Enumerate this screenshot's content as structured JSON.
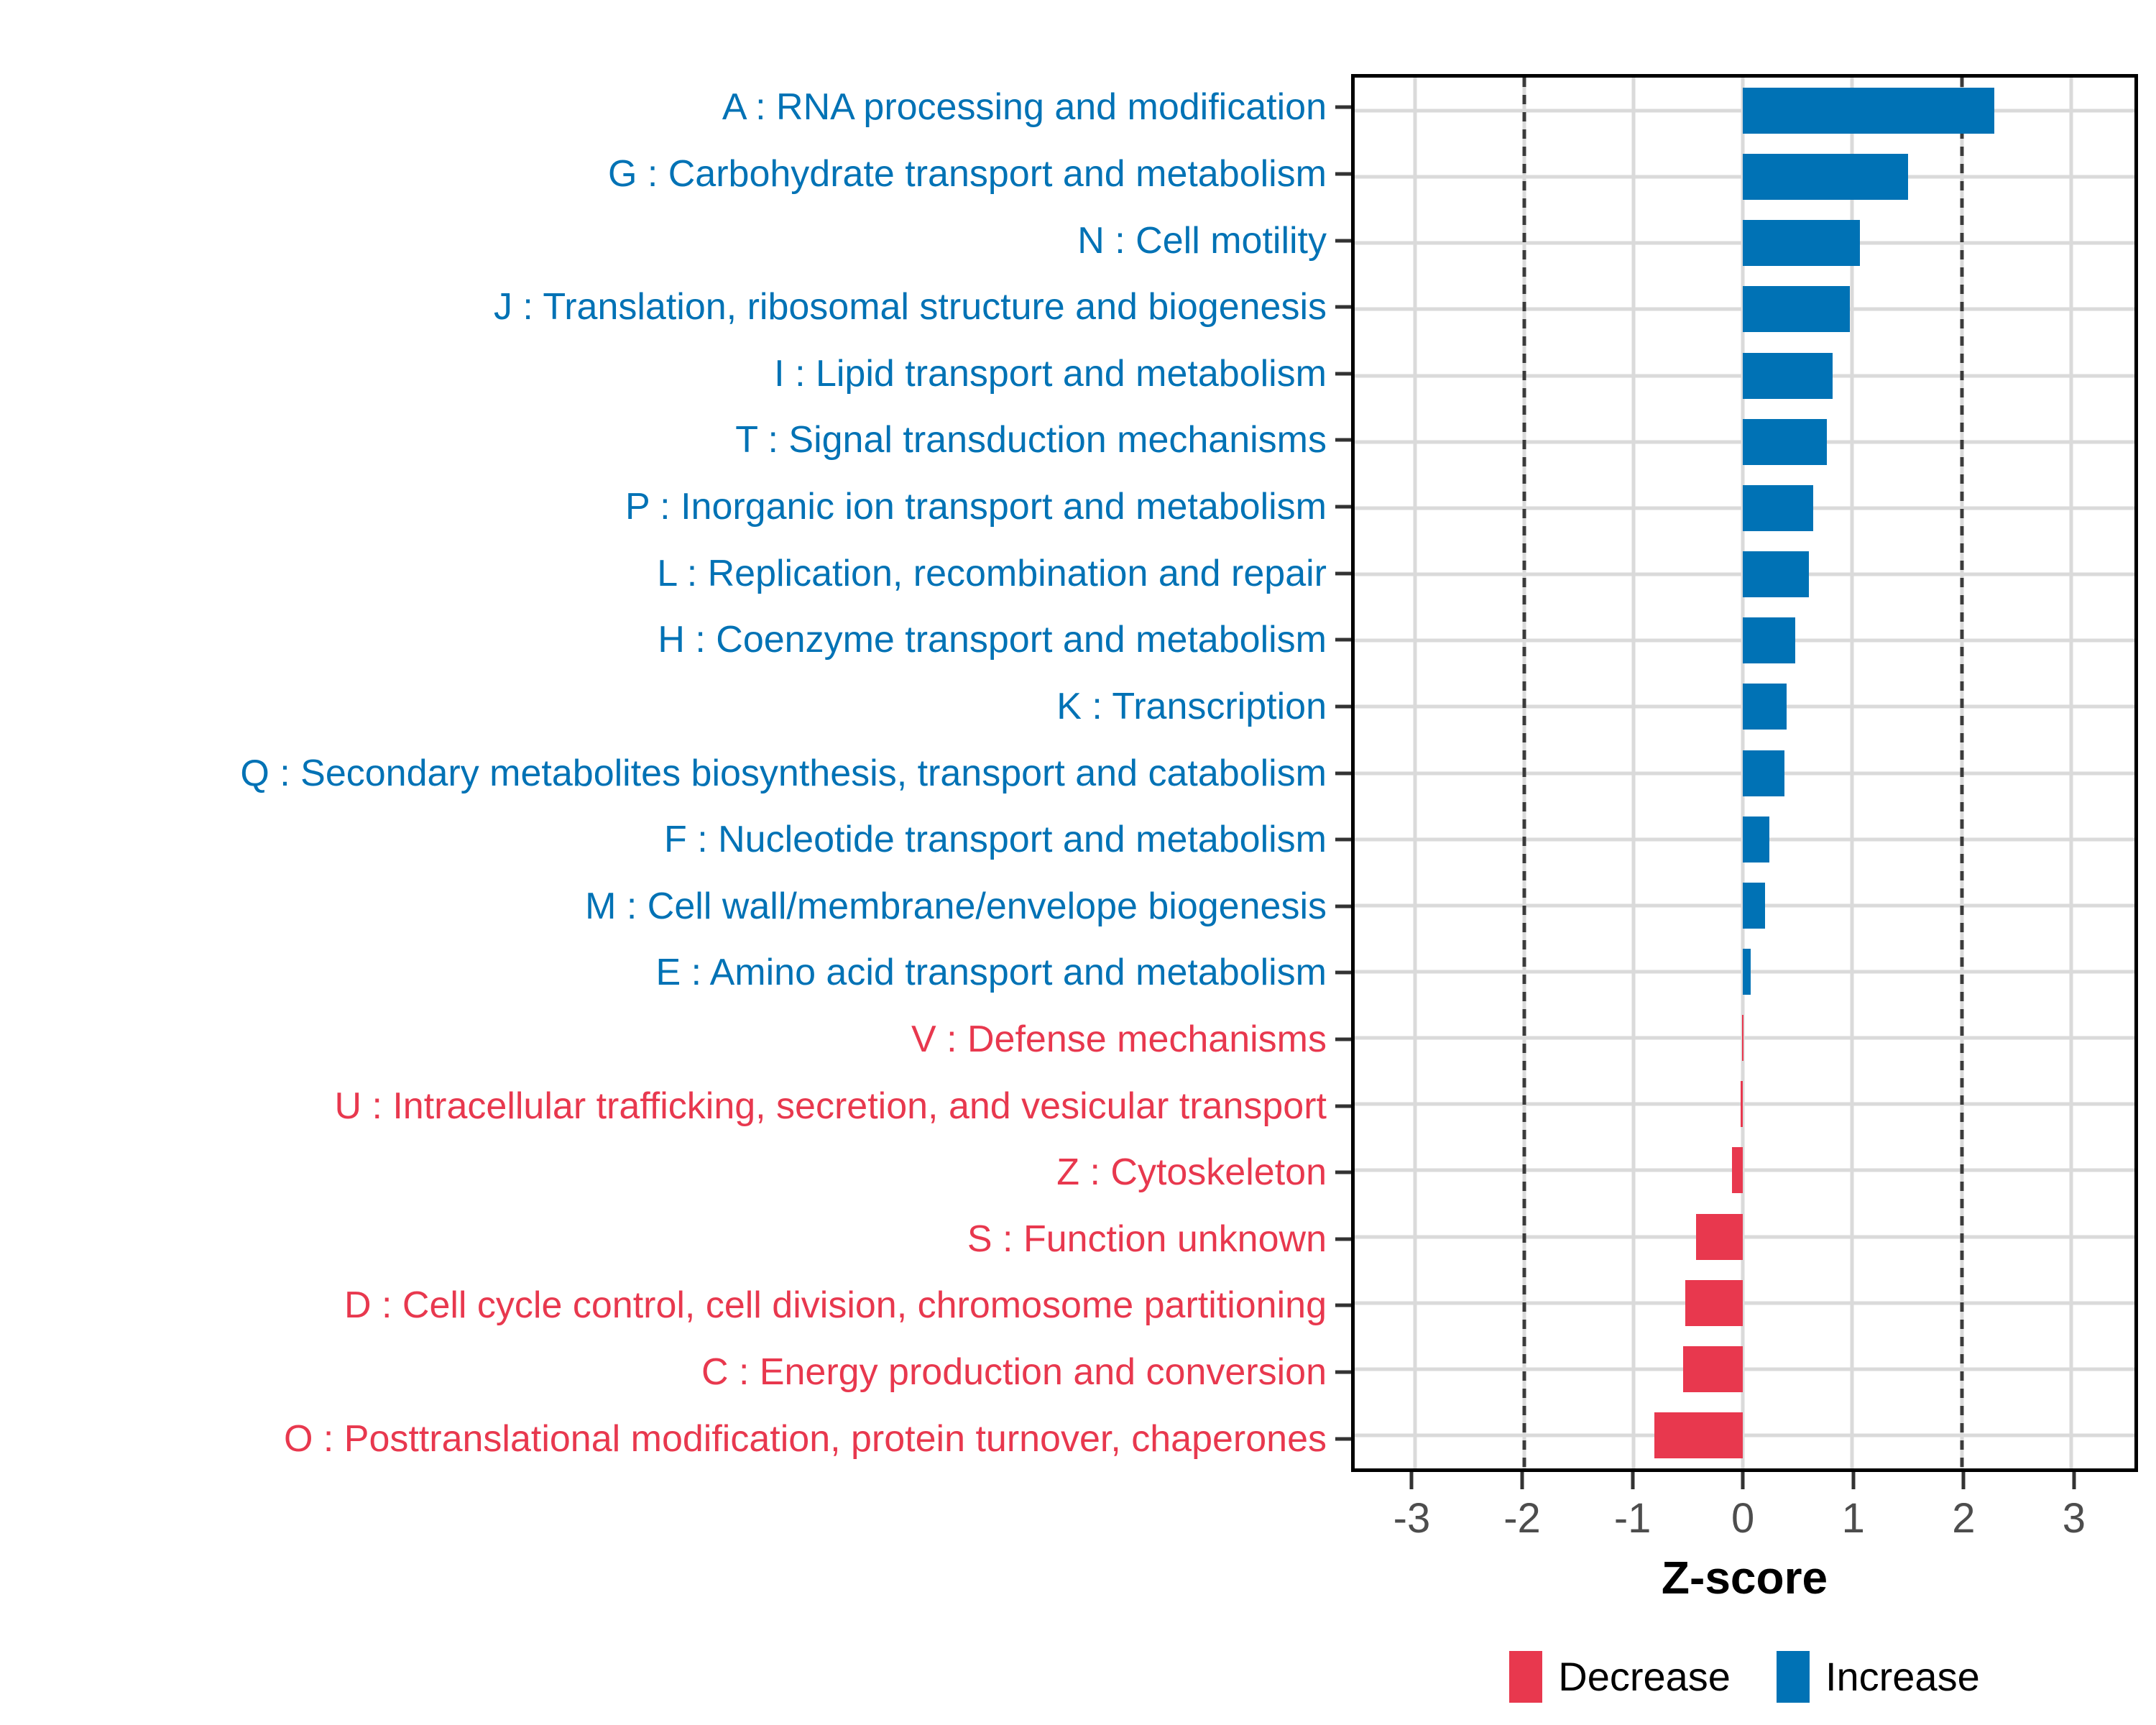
{
  "figure": {
    "xlabel": "Z-score",
    "colors": {
      "increase": "#0072B5",
      "decrease": "#E8384E",
      "grid": "#DADADA",
      "reference_line": "#3B3B3B",
      "tick": "#333333",
      "axis_text": "#4D4D4D",
      "panel_border": "#000000",
      "background": "#FFFFFF"
    },
    "legend": {
      "items": [
        {
          "label": "Decrease",
          "color_key": "decrease"
        },
        {
          "label": "Increase",
          "color_key": "increase"
        }
      ],
      "position": "bottom"
    }
  },
  "chart_data": {
    "type": "bar",
    "orientation": "horizontal",
    "title": "",
    "xlabel": "Z-score",
    "ylabel": "",
    "x_axis": {
      "min": -3.55,
      "max": 3.58,
      "ticks": [
        -3,
        -2,
        -1,
        0,
        1,
        2,
        3
      ],
      "reference_lines": [
        -2,
        2
      ],
      "grid": true
    },
    "series_legend": [
      "Decrease",
      "Increase"
    ],
    "categories": [
      {
        "code": "A",
        "label": "A : RNA processing and modification",
        "value": 2.3,
        "group": "Increase"
      },
      {
        "code": "G",
        "label": "G : Carbohydrate transport and metabolism",
        "value": 1.51,
        "group": "Increase"
      },
      {
        "code": "N",
        "label": "N : Cell motility",
        "value": 1.07,
        "group": "Increase"
      },
      {
        "code": "J",
        "label": "J : Translation, ribosomal structure and biogenesis",
        "value": 0.98,
        "group": "Increase"
      },
      {
        "code": "I",
        "label": "I : Lipid transport and metabolism",
        "value": 0.82,
        "group": "Increase"
      },
      {
        "code": "T",
        "label": "T : Signal transduction mechanisms",
        "value": 0.77,
        "group": "Increase"
      },
      {
        "code": "P",
        "label": "P : Inorganic ion transport and metabolism",
        "value": 0.64,
        "group": "Increase"
      },
      {
        "code": "L",
        "label": "L : Replication, recombination and repair",
        "value": 0.6,
        "group": "Increase"
      },
      {
        "code": "H",
        "label": "H : Coenzyme transport and metabolism",
        "value": 0.48,
        "group": "Increase"
      },
      {
        "code": "K",
        "label": "K : Transcription",
        "value": 0.4,
        "group": "Increase"
      },
      {
        "code": "Q",
        "label": "Q : Secondary metabolites biosynthesis, transport and catabolism",
        "value": 0.38,
        "group": "Increase"
      },
      {
        "code": "F",
        "label": "F : Nucleotide transport and metabolism",
        "value": 0.24,
        "group": "Increase"
      },
      {
        "code": "M",
        "label": "M : Cell wall/membrane/envelope biogenesis",
        "value": 0.2,
        "group": "Increase"
      },
      {
        "code": "E",
        "label": "E : Amino acid transport and metabolism",
        "value": 0.07,
        "group": "Increase"
      },
      {
        "code": "V",
        "label": "V : Defense mechanisms",
        "value": -0.01,
        "group": "Decrease"
      },
      {
        "code": "U",
        "label": "U : Intracellular trafficking, secretion, and vesicular transport",
        "value": -0.02,
        "group": "Decrease"
      },
      {
        "code": "Z",
        "label": "Z : Cytoskeleton",
        "value": -0.1,
        "group": "Decrease"
      },
      {
        "code": "S",
        "label": "S : Function unknown",
        "value": -0.43,
        "group": "Decrease"
      },
      {
        "code": "D",
        "label": "D : Cell cycle control, cell division, chromosome partitioning",
        "value": -0.53,
        "group": "Decrease"
      },
      {
        "code": "C",
        "label": "C : Energy production and conversion",
        "value": -0.55,
        "group": "Decrease"
      },
      {
        "code": "O",
        "label": "O : Posttranslational modification, protein turnover, chaperones",
        "value": -0.81,
        "group": "Decrease"
      }
    ]
  }
}
